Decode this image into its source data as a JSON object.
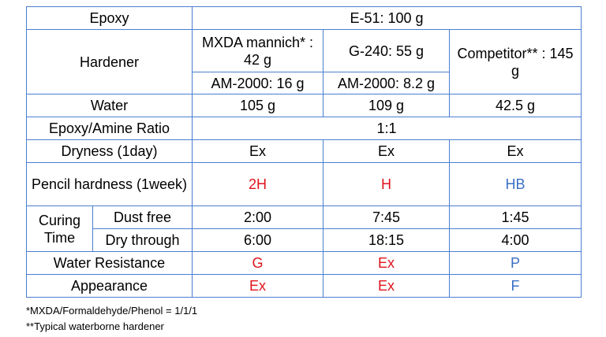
{
  "colors": {
    "border": "#4a7fd0",
    "red_text": "#e0141e",
    "blue_text": "#3a6fc4"
  },
  "epoxy": {
    "label": "Epoxy",
    "value": "E-51: 100 g"
  },
  "hardener": {
    "label": "Hardener",
    "mxda_main": "MXDA mannich* : 42 g",
    "mxda_am": "AM-2000: 16 g",
    "g240_main": "G-240:  55 g",
    "g240_am": "AM-2000: 8.2 g",
    "competitor": "Competitor** : 145 g"
  },
  "water": {
    "label": "Water",
    "values": [
      "105 g",
      "109 g",
      "42.5 g"
    ]
  },
  "ratio": {
    "label": "Epoxy/Amine Ratio",
    "value": "1:1"
  },
  "dryness": {
    "label": "Dryness (1day)",
    "values": [
      "Ex",
      "Ex",
      "Ex"
    ]
  },
  "pencil": {
    "label": "Pencil hardness (1week)",
    "values": [
      "2H",
      "H",
      "HB"
    ]
  },
  "curing": {
    "label": "Curing Time",
    "dust_free": {
      "label": "Dust free",
      "values": [
        "2:00",
        "7:45",
        "1:45"
      ]
    },
    "dry_through": {
      "label": "Dry through",
      "values": [
        "6:00",
        "18:15",
        "4:00"
      ]
    }
  },
  "water_resistance": {
    "label": "Water Resistance",
    "values": [
      "G",
      "Ex",
      "P"
    ]
  },
  "appearance": {
    "label": "Appearance",
    "values": [
      "Ex",
      "Ex",
      "F"
    ]
  },
  "notes": {
    "note1": "*MXDA/Formaldehyde/Phenol = 1/1/1",
    "note2": "**Typical waterborne hardener"
  }
}
